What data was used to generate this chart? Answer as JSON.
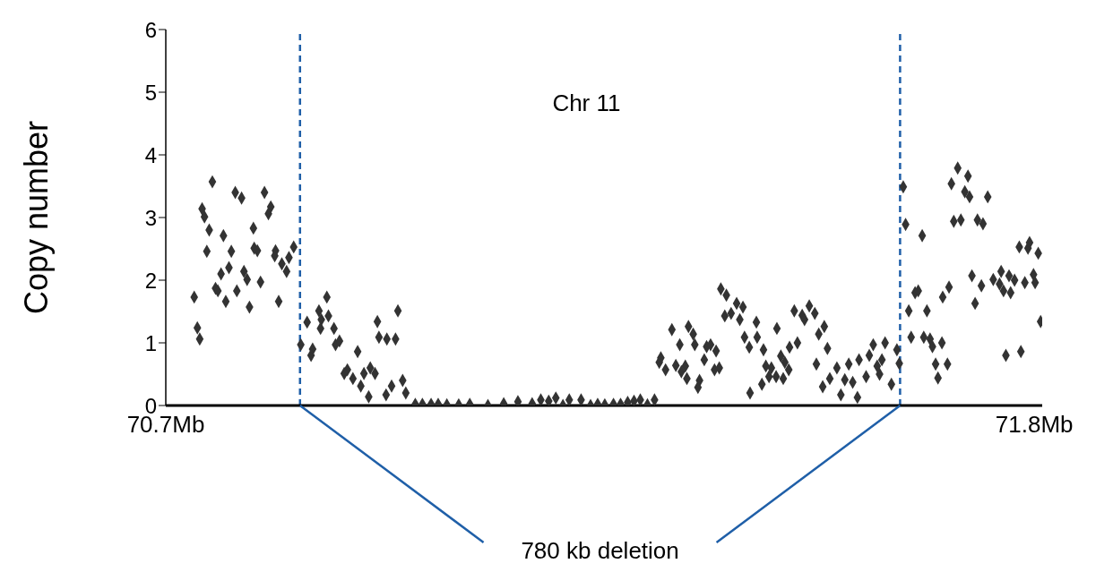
{
  "chart_data": {
    "type": "scatter",
    "ylabel": "Copy number",
    "annotations": [
      "Chr 11",
      "780 kb deletion"
    ],
    "xlim": [
      70.7,
      71.81
    ],
    "xticks": [
      {
        "value": 70.7,
        "label": "70.7Mb"
      },
      {
        "value": 71.8,
        "label": "71.8Mb"
      }
    ],
    "ylim": [
      0,
      6
    ],
    "yticks": [
      0,
      1,
      2,
      3,
      4,
      5,
      6
    ],
    "marker": "diamond",
    "color": "#333333",
    "ref_lines": [
      {
        "axis": "x",
        "value": 70.87,
        "color": "#1f5fa8",
        "line_style": "dashed"
      },
      {
        "axis": "x",
        "value": 71.63,
        "color": "#1f5fa8",
        "line_style": "dashed"
      }
    ],
    "x": [
      70.759,
      70.746,
      70.749,
      70.755,
      70.752,
      70.773,
      70.788,
      70.796,
      70.783,
      70.78,
      70.77,
      70.763,
      70.766,
      70.776,
      70.79,
      70.799,
      70.803,
      70.806,
      70.811,
      70.812,
      70.816,
      70.82,
      70.825,
      70.833,
      70.83,
      70.839,
      70.838,
      70.843,
      70.847,
      70.853,
      70.856,
      70.862,
      70.736,
      70.74,
      70.743,
      70.871,
      70.879,
      70.894,
      70.897,
      70.904,
      70.906,
      70.896,
      70.913,
      70.886,
      70.884,
      70.915,
      70.92,
      70.943,
      70.93,
      70.926,
      70.937,
      70.947,
      70.957,
      70.951,
      70.959,
      70.965,
      70.968,
      70.97,
      70.98,
      70.991,
      70.994,
      70.979,
      70.986,
      71.0,
      71.004,
      71.016,
      71.025,
      71.036,
      71.045,
      71.056,
      71.071,
      71.085,
      71.108,
      71.128,
      71.146,
      71.164,
      71.175,
      71.185,
      71.194,
      71.203,
      71.211,
      71.226,
      71.238,
      71.247,
      71.256,
      71.267,
      71.276,
      71.285,
      71.293,
      71.301,
      71.31,
      71.319,
      71.341,
      71.351,
      71.362,
      71.368,
      71.37,
      71.325,
      71.327,
      71.333,
      71.346,
      71.358,
      71.353,
      71.36,
      71.382,
      71.376,
      71.374,
      71.385,
      71.39,
      71.397,
      71.395,
      71.401,
      71.403,
      71.41,
      71.408,
      71.416,
      71.423,
      71.427,
      71.431,
      71.448,
      71.433,
      71.449,
      71.439,
      71.457,
      71.474,
      71.479,
      71.484,
      71.46,
      71.467,
      71.464,
      71.473,
      71.482,
      71.489,
      71.455,
      71.44,
      71.49,
      71.5,
      71.496,
      71.506,
      71.515,
      71.522,
      71.509,
      71.527,
      71.534,
      71.538,
      71.524,
      71.532,
      71.541,
      71.55,
      71.555,
      71.56,
      71.57,
      71.565,
      71.576,
      71.578,
      71.587,
      71.591,
      71.596,
      71.601,
      71.607,
      71.604,
      71.611,
      71.619,
      71.626,
      71.629,
      71.634,
      71.637,
      71.658,
      71.641,
      71.649,
      71.653,
      71.664,
      71.644,
      71.66,
      71.668,
      71.671,
      71.683,
      71.675,
      71.69,
      71.678,
      71.684,
      71.692,
      71.703,
      71.716,
      71.695,
      71.712,
      71.718,
      71.741,
      71.698,
      71.707,
      71.728,
      71.735,
      71.721,
      71.725,
      71.733,
      71.748,
      71.758,
      71.756,
      71.761,
      71.77,
      71.768,
      71.775,
      71.788,
      71.799,
      71.801,
      71.781,
      71.792,
      71.794,
      71.805,
      71.808,
      71.764,
      71.783
    ],
    "values": [
      3.57,
      3.14,
      3.01,
      2.8,
      2.46,
      2.71,
      3.4,
      3.31,
      2.46,
      2.2,
      2.1,
      1.87,
      1.83,
      1.66,
      1.83,
      2.14,
      2.01,
      1.57,
      2.83,
      2.51,
      2.47,
      1.97,
      3.4,
      3.17,
      3.06,
      2.47,
      2.39,
      1.66,
      2.26,
      2.14,
      2.36,
      2.53,
      1.73,
      1.24,
      1.06,
      0.97,
      1.33,
      1.51,
      1.37,
      1.73,
      1.43,
      1.23,
      1.23,
      0.9,
      0.8,
      0.97,
      1.03,
      0.86,
      0.57,
      0.51,
      0.43,
      0.31,
      0.14,
      0.51,
      0.6,
      0.51,
      1.34,
      1.09,
      1.06,
      1.06,
      1.51,
      0.17,
      0.31,
      0.4,
      0.2,
      0.02,
      0.02,
      0.02,
      0.02,
      0.01,
      0.01,
      0.02,
      0,
      0.03,
      0.06,
      0.03,
      0.09,
      0.07,
      0.12,
      0,
      0.09,
      0.09,
      0,
      0.02,
      0.01,
      0.02,
      0.02,
      0.05,
      0.07,
      0.09,
      0.01,
      0.09,
      1.21,
      0.97,
      1.26,
      1.14,
      0.97,
      0.69,
      0.76,
      0.57,
      0.64,
      0.63,
      0.54,
      0.43,
      0.73,
      0.4,
      0.29,
      0.94,
      0.97,
      0.87,
      0.57,
      0.6,
      1.86,
      1.76,
      1.43,
      1.47,
      1.63,
      1.37,
      1.57,
      1.33,
      1.09,
      1.09,
      0.93,
      0.89,
      1.23,
      0.79,
      0.69,
      0.63,
      0.6,
      0.46,
      0.46,
      0.43,
      0.57,
      0.34,
      0.2,
      0.93,
      1.0,
      1.51,
      1.44,
      1.59,
      1.47,
      1.37,
      1.14,
      1.26,
      0.91,
      0.66,
      0.3,
      0.43,
      0.6,
      0.17,
      0.41,
      0.37,
      0.66,
      0.13,
      0.73,
      0.46,
      0.8,
      0.97,
      0.63,
      0.73,
      0.5,
      1.0,
      0.34,
      0.89,
      0.67,
      3.49,
      2.89,
      2.71,
      1.51,
      1.8,
      1.83,
      1.51,
      1.09,
      1.09,
      1.06,
      0.94,
      1.0,
      0.66,
      0.66,
      0.44,
      1.73,
      1.89,
      3.79,
      3.66,
      3.54,
      3.41,
      3.33,
      3.33,
      2.94,
      2.96,
      2.96,
      2.9,
      2.07,
      1.63,
      1.91,
      2.01,
      2.14,
      1.94,
      1.83,
      1.8,
      2.07,
      2.0,
      1.96,
      2.09,
      1.96,
      2.53,
      2.51,
      2.6,
      2.43,
      1.34,
      0.8,
      0.86
    ]
  }
}
